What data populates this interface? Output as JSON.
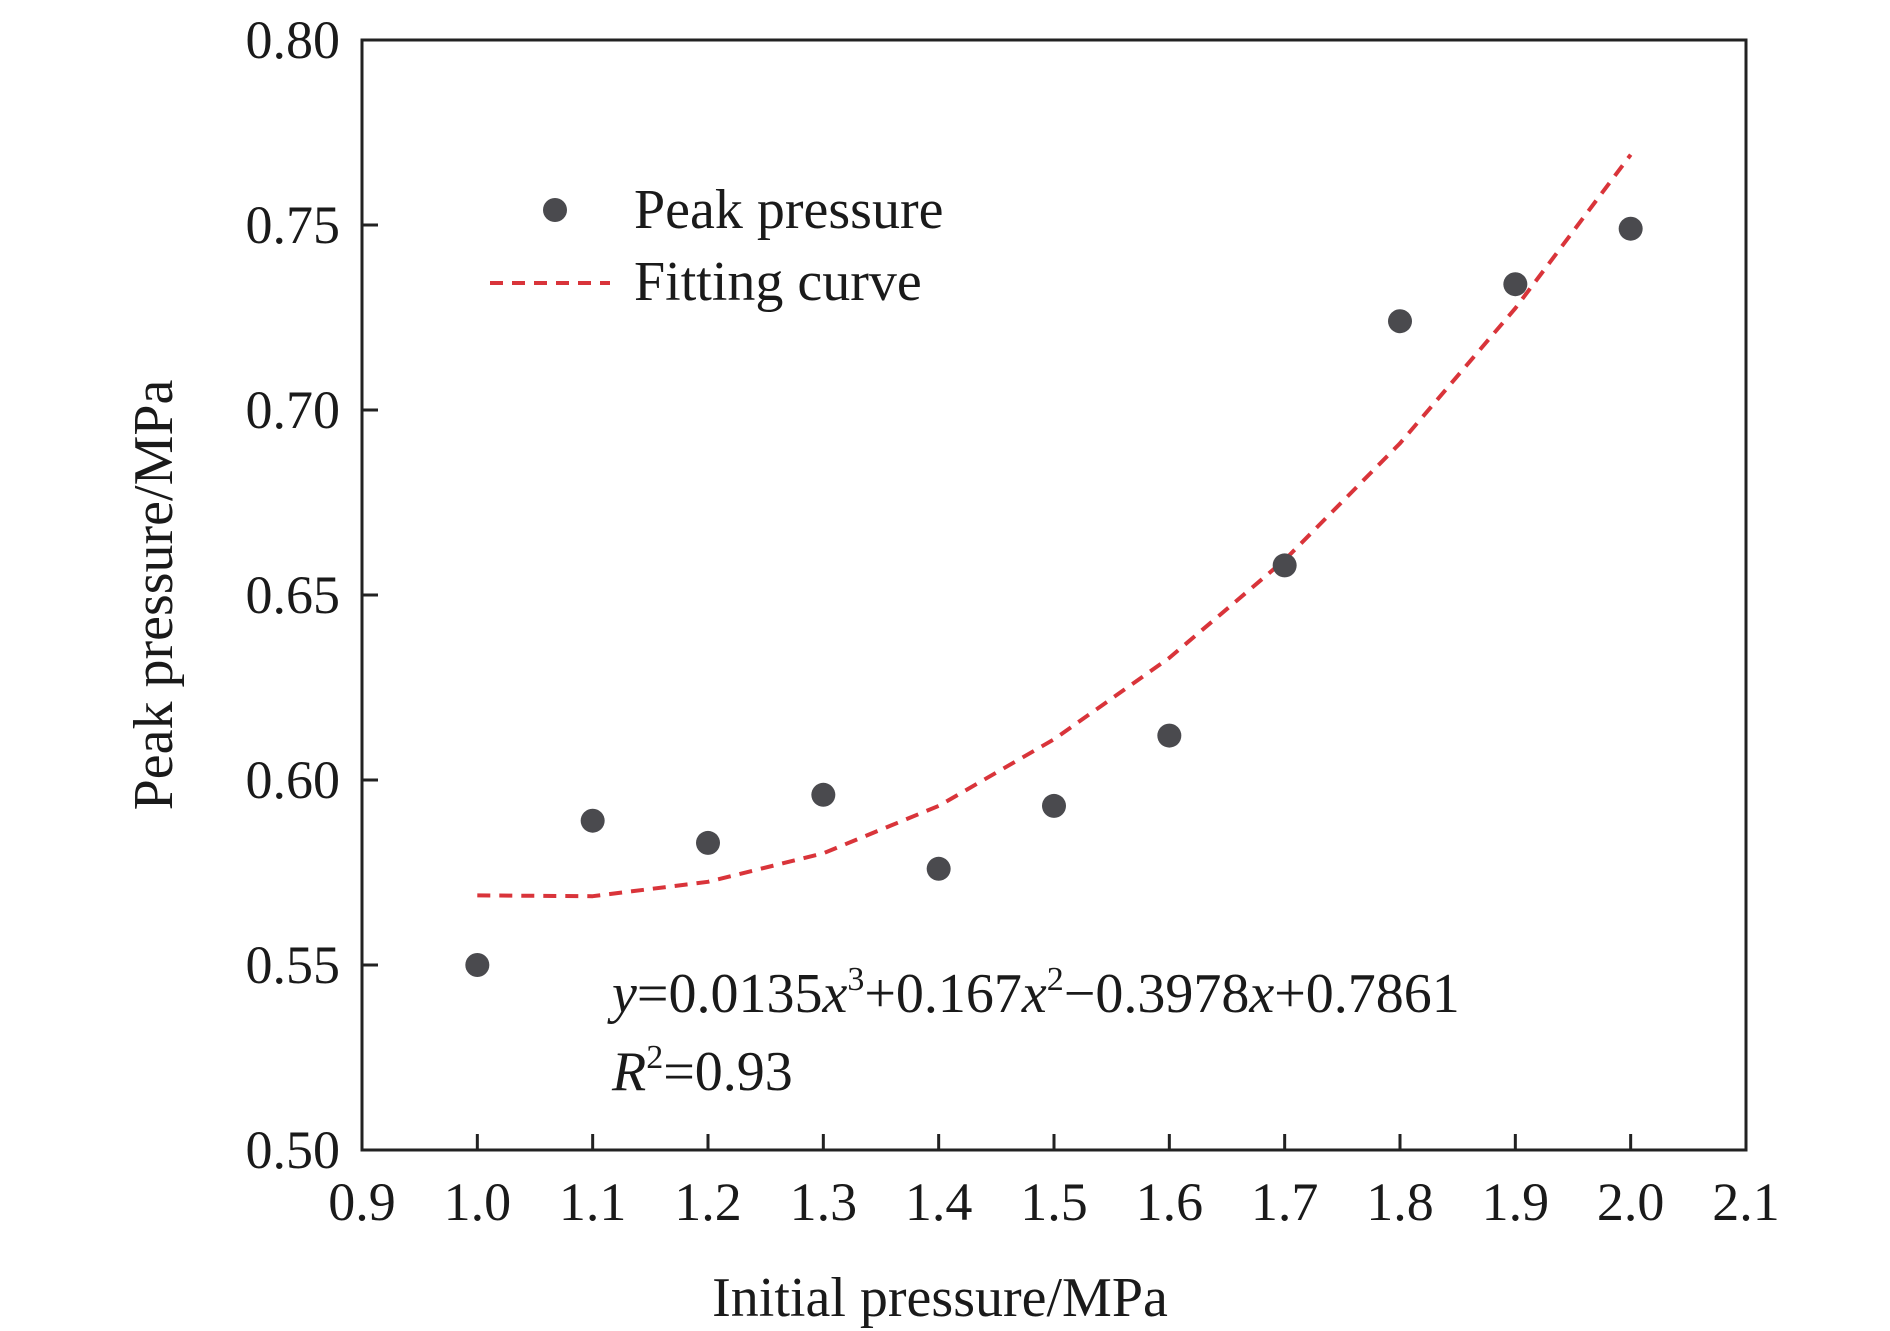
{
  "chart_data": {
    "type": "scatter",
    "xlabel": "Initial pressure/MPa",
    "ylabel": "Peak pressure/MPa",
    "xlim": [
      0.9,
      2.1
    ],
    "ylim": [
      0.5,
      0.8
    ],
    "x_ticks": [
      "0.9",
      "1.0",
      "1.1",
      "1.2",
      "1.3",
      "1.4",
      "1.5",
      "1.6",
      "1.7",
      "1.8",
      "1.9",
      "2.0",
      "2.1"
    ],
    "y_ticks": [
      "0.50",
      "0.55",
      "0.60",
      "0.65",
      "0.70",
      "0.75",
      "0.80"
    ],
    "grid": false,
    "legend_position": "top-left",
    "series": [
      {
        "name": "Peak pressure",
        "kind": "scatter",
        "color": "#4a4a4e",
        "x": [
          1.0,
          1.1,
          1.2,
          1.3,
          1.4,
          1.5,
          1.6,
          1.7,
          1.8,
          1.9,
          2.0
        ],
        "y": [
          0.55,
          0.589,
          0.583,
          0.596,
          0.576,
          0.593,
          0.612,
          0.658,
          0.724,
          0.734,
          0.749
        ]
      },
      {
        "name": "Fitting curve",
        "kind": "line",
        "style": "dashed",
        "color": "#d9343a",
        "x": [
          1.0,
          1.1,
          1.2,
          1.3,
          1.4,
          1.5,
          1.6,
          1.7,
          1.8,
          1.9,
          2.0
        ],
        "y": [
          0.5688,
          0.5686,
          0.5725,
          0.5802,
          0.593,
          0.611,
          0.633,
          0.6595,
          0.691,
          0.7275,
          0.769
        ]
      }
    ],
    "annotation": {
      "equation": {
        "y": "y",
        "eq1": "=0.0135",
        "x1": "x",
        "p1": "3",
        "eq2": "+0.167",
        "x2": "x",
        "p2": "2",
        "eq3": "−0.3978",
        "x3": "x",
        "eq4": "+0.7861"
      },
      "r2": {
        "r": "R",
        "p": "2",
        "value": "=0.93"
      }
    }
  }
}
